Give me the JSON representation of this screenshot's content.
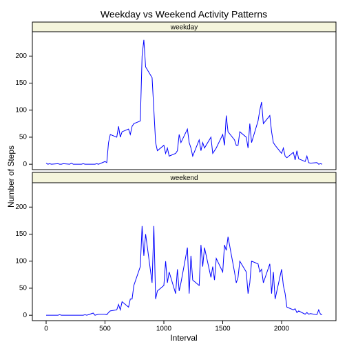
{
  "chart_data": {
    "type": "line",
    "title": "Weekday vs Weekend Activity Patterns",
    "xlabel": "Interval",
    "ylabel": "Number of Steps",
    "x": [
      0,
      15,
      30,
      45,
      100,
      115,
      130,
      145,
      200,
      215,
      230,
      245,
      300,
      315,
      330,
      345,
      400,
      415,
      430,
      445,
      500,
      515,
      530,
      545,
      600,
      615,
      630,
      645,
      700,
      715,
      730,
      745,
      800,
      815,
      830,
      845,
      900,
      915,
      930,
      945,
      1000,
      1015,
      1030,
      1045,
      1100,
      1115,
      1130,
      1145,
      1200,
      1215,
      1230,
      1245,
      1300,
      1315,
      1330,
      1345,
      1400,
      1415,
      1430,
      1445,
      1500,
      1515,
      1530,
      1545,
      1600,
      1615,
      1630,
      1645,
      1700,
      1715,
      1730,
      1745,
      1800,
      1815,
      1830,
      1845,
      1900,
      1915,
      1930,
      1945,
      2000,
      2015,
      2030,
      2045,
      2100,
      2115,
      2130,
      2145,
      2200,
      2215,
      2230,
      2245,
      2300,
      2315,
      2330,
      2345
    ],
    "xlim": [
      -117,
      2462
    ],
    "ylim": [
      -10,
      245
    ],
    "xticks": [
      0,
      500,
      1000,
      1500,
      2000
    ],
    "yticks": [
      0,
      50,
      100,
      150,
      200
    ],
    "color": "#0000ff",
    "strip_color": "#f5f5dc",
    "panels": [
      {
        "name": "weekday",
        "values": [
          2,
          0,
          1,
          0,
          1,
          0,
          0,
          1,
          0,
          2,
          0,
          0,
          0,
          1,
          0,
          0,
          0,
          0,
          1,
          0,
          5,
          3,
          40,
          55,
          50,
          70,
          50,
          60,
          65,
          55,
          70,
          75,
          80,
          200,
          230,
          180,
          160,
          100,
          40,
          25,
          35,
          20,
          30,
          15,
          20,
          25,
          55,
          40,
          65,
          40,
          30,
          15,
          45,
          25,
          40,
          30,
          50,
          20,
          25,
          30,
          55,
          35,
          90,
          60,
          45,
          35,
          35,
          60,
          50,
          30,
          75,
          40,
          80,
          100,
          115,
          75,
          90,
          60,
          40,
          35,
          20,
          30,
          15,
          12,
          22,
          8,
          25,
          10,
          5,
          15,
          3,
          2,
          3,
          0,
          1,
          0
        ]
      },
      {
        "name": "weekend",
        "values": [
          0,
          0,
          0,
          0,
          0,
          1,
          0,
          0,
          0,
          0,
          0,
          0,
          0,
          0,
          1,
          0,
          4,
          0,
          1,
          2,
          2,
          1,
          5,
          8,
          10,
          20,
          10,
          25,
          15,
          30,
          30,
          55,
          90,
          165,
          110,
          150,
          60,
          165,
          30,
          45,
          55,
          100,
          60,
          80,
          40,
          85,
          45,
          60,
          125,
          40,
          110,
          65,
          55,
          130,
          90,
          125,
          70,
          90,
          65,
          105,
          80,
          130,
          120,
          145,
          80,
          60,
          70,
          100,
          80,
          40,
          60,
          100,
          95,
          80,
          85,
          60,
          95,
          40,
          80,
          30,
          85,
          55,
          40,
          15,
          10,
          12,
          5,
          8,
          2,
          5,
          2,
          3,
          1,
          10,
          2,
          1
        ]
      }
    ]
  }
}
